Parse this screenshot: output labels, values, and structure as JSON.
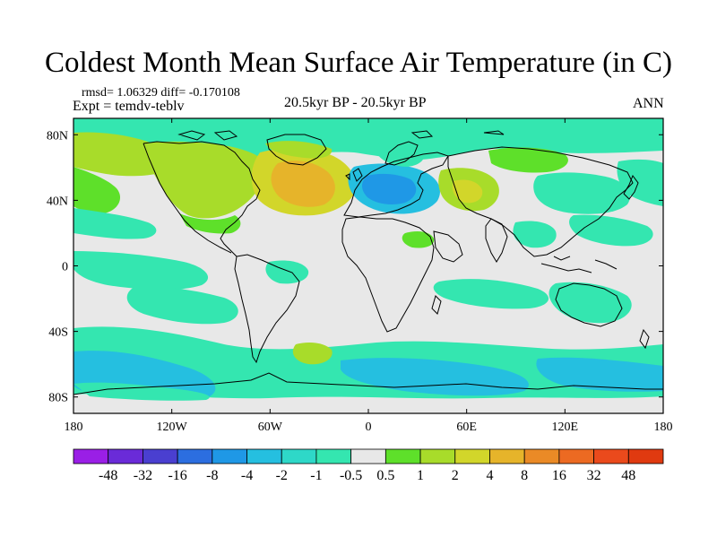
{
  "title": "Coldest Month Mean Surface Air Temperature (in C)",
  "stats": {
    "text": "rmsd= 1.06329  diff= -0.170108"
  },
  "experiment": "Expt = temdv-teblv",
  "period": "20.5kyr BP - 20.5kyr BP",
  "season": "ANN",
  "axes": {
    "x_ticks": [
      "180",
      "120W",
      "60W",
      "0",
      "60E",
      "120E",
      "180"
    ],
    "y_ticks": [
      "80N",
      "40N",
      "0",
      "40S",
      "80S"
    ]
  },
  "colorbar": {
    "labels": [
      "-48",
      "-32",
      "-16",
      "-8",
      "-4",
      "-2",
      "-1",
      "-0.5",
      "0.5",
      "1",
      "2",
      "4",
      "8",
      "16",
      "32",
      "48"
    ],
    "colors": [
      "#9a1fe6",
      "#6a2bd8",
      "#4a3fd0",
      "#2c6ee0",
      "#1f98e6",
      "#25bfe0",
      "#2ed8c8",
      "#34e6b0",
      "#e8e8e8",
      "#5ee02a",
      "#a8dc2a",
      "#d2d62a",
      "#e6b42a",
      "#ea8a26",
      "#ec6a22",
      "#ea4a1c",
      "#e03a10"
    ]
  },
  "palette": {
    "neutral": "#e8e8e8",
    "cyan": "#34e6b0",
    "light_blue": "#25bfe0",
    "blue": "#1f98e6",
    "green": "#5ee02a",
    "yellow_green": "#a8dc2a",
    "yellow": "#d2d62a",
    "orange": "#e6b42a"
  }
}
